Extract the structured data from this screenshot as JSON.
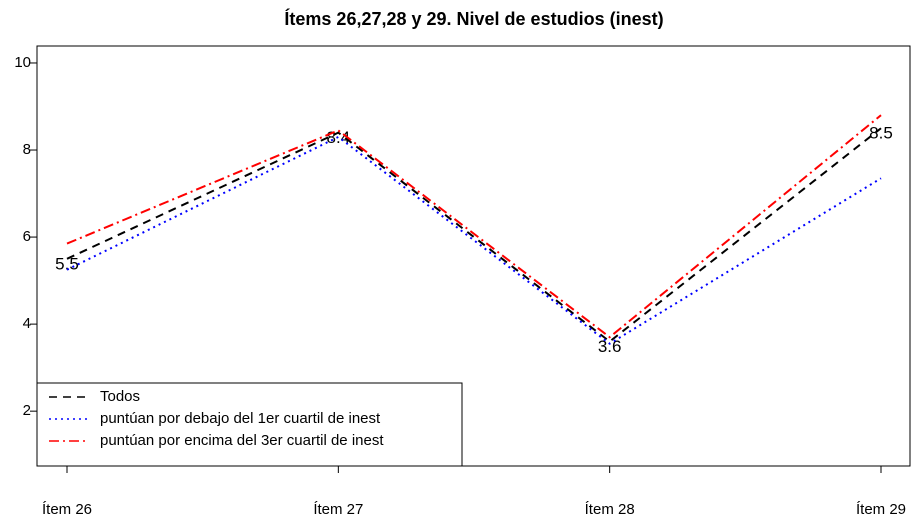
{
  "chart_data": {
    "type": "line",
    "title": "Ítems 26,27,28 y 29. Nivel de estudios (inest)",
    "categories": [
      "Ítem 26",
      "Ítem 27",
      "Ítem 28",
      "Ítem 29"
    ],
    "series": [
      {
        "name": "Todos",
        "color": "#000000",
        "linestyle": "dashed",
        "values": [
          5.5,
          8.4,
          3.6,
          8.5
        ],
        "value_labels": [
          "5.5",
          "8.4",
          "3.6",
          "8.5"
        ]
      },
      {
        "name": "puntúan por debajo del 1er cuartil de inest",
        "color": "#0000ff",
        "linestyle": "dotted",
        "values": [
          5.25,
          8.3,
          3.55,
          7.35
        ]
      },
      {
        "name": "puntúan por encima del 3er cuartil de inest",
        "color": "#ff0000",
        "linestyle": "dashdot",
        "values": [
          5.85,
          8.45,
          3.7,
          8.8
        ]
      }
    ],
    "ylim": [
      0.74,
      10.39
    ],
    "yticks": [
      2,
      4,
      6,
      8,
      10
    ],
    "legend": "bottomleft"
  }
}
